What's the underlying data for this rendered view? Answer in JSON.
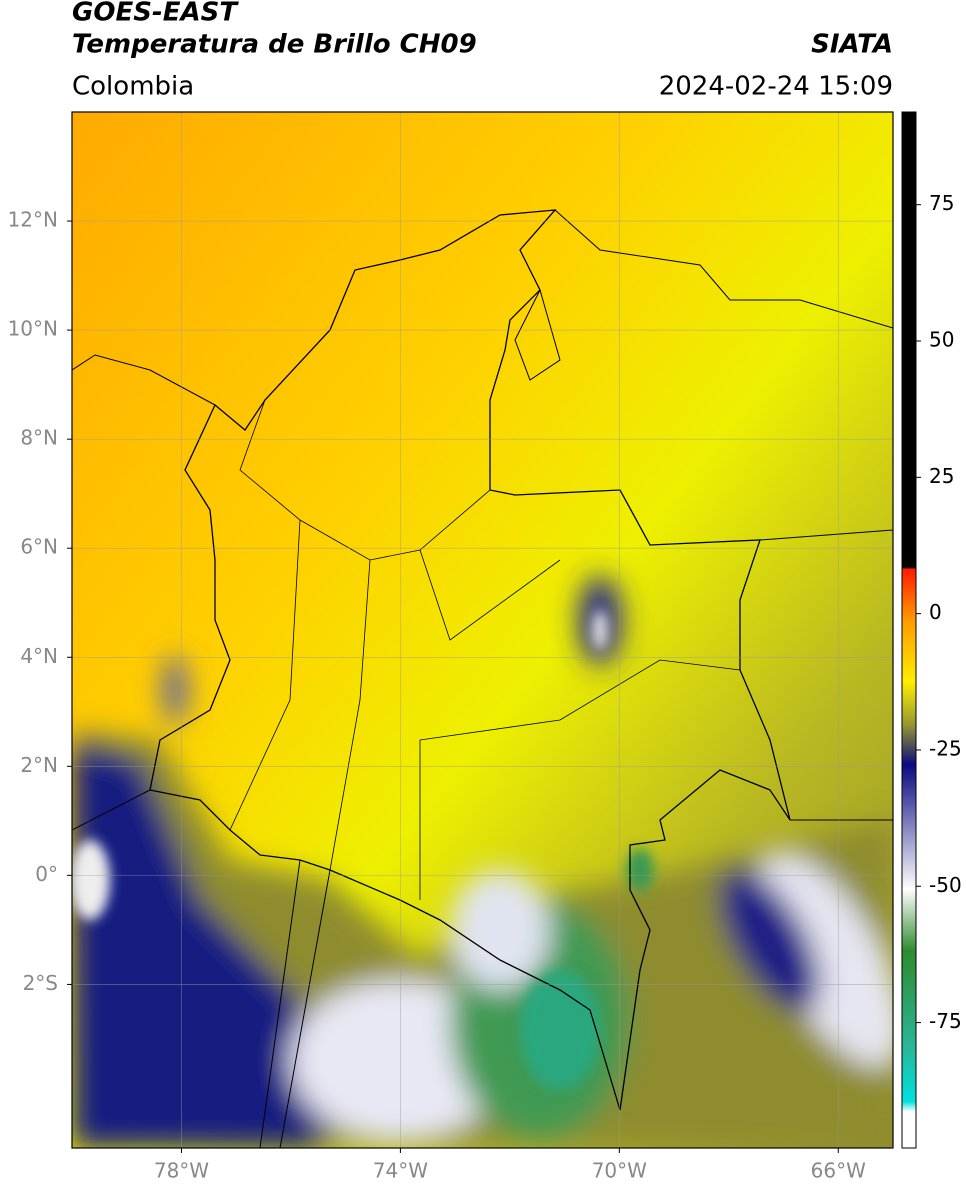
{
  "header": {
    "title_line1": "GOES-EAST",
    "title_line2": "Temperatura de Brillo CH09",
    "agency": "SIATA",
    "region": "Colombia",
    "datetime": "2024-02-24 15:09"
  },
  "map": {
    "xlim": [
      -80,
      -65
    ],
    "ylim": [
      -5,
      14
    ],
    "grid": true,
    "yticks": [
      {
        "value": 12,
        "label": "12°N"
      },
      {
        "value": 10,
        "label": "10°N"
      },
      {
        "value": 8,
        "label": "8°N"
      },
      {
        "value": 6,
        "label": "6°N"
      },
      {
        "value": 4,
        "label": "4°N"
      },
      {
        "value": 2,
        "label": "2°N"
      },
      {
        "value": 0,
        "label": "0°"
      },
      {
        "value": -2,
        "label": "2°S"
      }
    ],
    "xticks": [
      {
        "value": -78,
        "label": "78°W"
      },
      {
        "value": -74,
        "label": "74°W"
      },
      {
        "value": -70,
        "label": "70°W"
      },
      {
        "value": -66,
        "label": "66°W"
      }
    ]
  },
  "colorbar": {
    "ylim": [
      -98,
      92
    ],
    "yticks": [
      75,
      50,
      25,
      0,
      -25,
      -50,
      -75
    ]
  }
}
